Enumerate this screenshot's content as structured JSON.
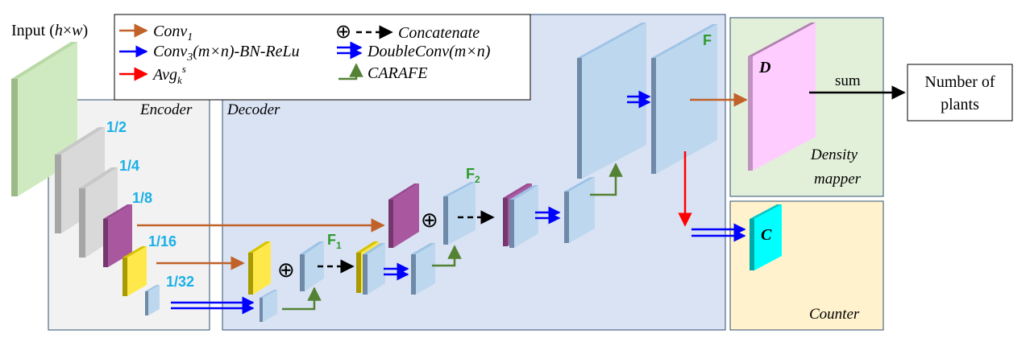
{
  "input": {
    "prefix": "Input (",
    "h": "h",
    "x": "×",
    "w": "w",
    "suffix": ")"
  },
  "legend": {
    "conv1": {
      "base": "Conv",
      "sub": "1"
    },
    "conv3": {
      "base": "Conv",
      "sub": "3",
      "rest": "(m×n)-BN-ReLu"
    },
    "avg": {
      "base": "Avg",
      "sub": "k",
      "sup": "s"
    },
    "concat": {
      "symbol": "⊕",
      "label": "Concatenate"
    },
    "doubleconv": "DoubleConv(m×n)",
    "carafe": "CARAFE"
  },
  "encoder": {
    "title": "Encoder",
    "scales": [
      "1/2",
      "1/4",
      "1/8",
      "1/16",
      "1/32"
    ]
  },
  "decoder": {
    "title": "Decoder",
    "f1": {
      "base": "F",
      "sub": "1"
    },
    "f2": {
      "base": "F",
      "sub": "2"
    },
    "f": "F",
    "concat_symbol": "⊕"
  },
  "density": {
    "letter": "D",
    "line1": "Density",
    "line2": "mapper",
    "sum": "sum"
  },
  "counter": {
    "letter": "C",
    "title": "Counter"
  },
  "output": {
    "line1": "Number of",
    "line2": "plants"
  },
  "colors": {
    "conv1": "#c0622a",
    "conv3": "#0000ff",
    "avg": "#ff0000",
    "carafe": "#548235",
    "scale_text": "#1ab0e8",
    "f_text": "#2e9a2e",
    "letter": "#ff0000"
  }
}
